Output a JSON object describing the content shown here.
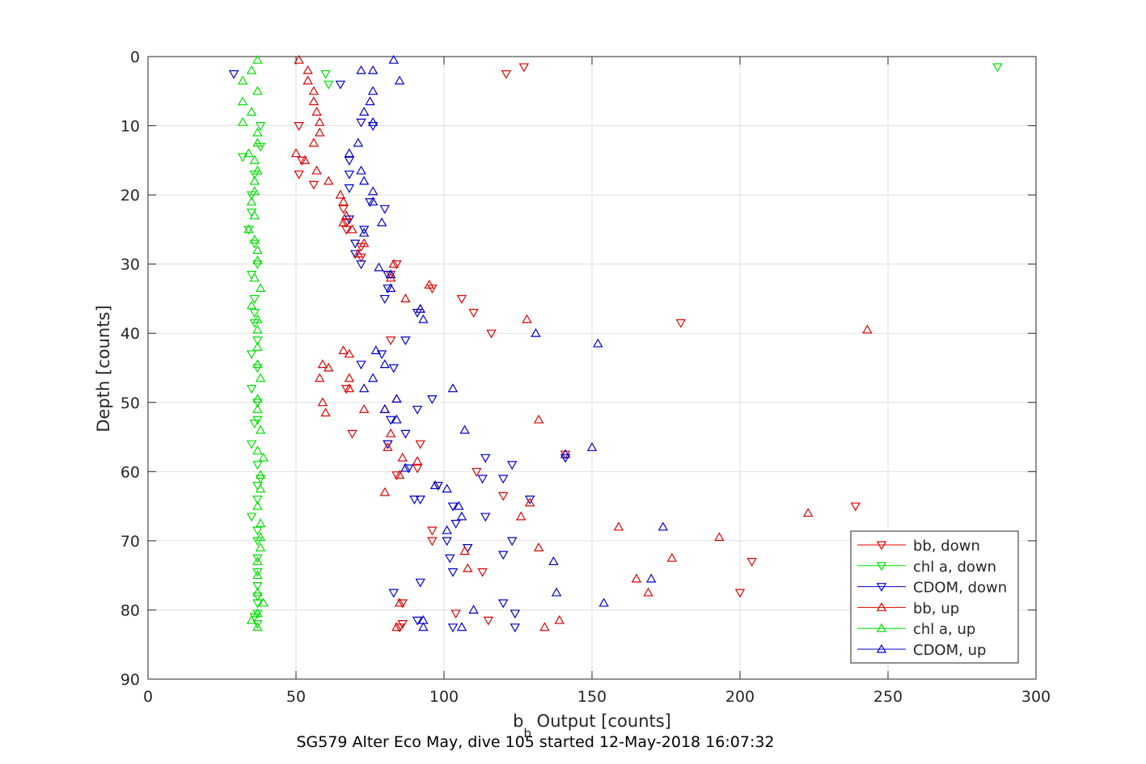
{
  "chart_data": {
    "type": "scatter",
    "xlabel_main": "b",
    "xlabel_sub": "b",
    "xlabel_rest": " Output [counts]",
    "ylabel": "Depth [counts]",
    "caption": "SG579 Alter Eco May, dive 105 started 12-May-2018 16:07:32",
    "xlim": [
      0,
      300
    ],
    "ylim": [
      0,
      90
    ],
    "y_reversed": true,
    "xticks": [
      0,
      50,
      100,
      150,
      200,
      250,
      300
    ],
    "yticks": [
      0,
      10,
      20,
      30,
      40,
      50,
      60,
      70,
      80,
      90
    ],
    "xtick_labels": [
      "0",
      "50",
      "100",
      "150",
      "200",
      "250",
      "300"
    ],
    "ytick_labels": [
      "0",
      "10",
      "20",
      "30",
      "40",
      "50",
      "60",
      "70",
      "80",
      "90"
    ],
    "grid": true,
    "legend_position": "bottom-right",
    "series": [
      {
        "name": "bb, down",
        "color": "#e00000",
        "marker": "triangle-down",
        "points": [
          [
            127,
            1.5
          ],
          [
            121,
            2.5
          ],
          [
            51,
            10
          ],
          [
            51,
            17
          ],
          [
            52,
            15
          ],
          [
            56,
            18.5
          ],
          [
            66,
            22
          ],
          [
            67,
            25
          ],
          [
            67,
            24
          ],
          [
            72,
            27.5
          ],
          [
            72,
            29
          ],
          [
            82,
            31.5
          ],
          [
            84,
            30
          ],
          [
            96,
            33.5
          ],
          [
            106,
            35
          ],
          [
            110,
            37
          ],
          [
            180,
            38.5
          ],
          [
            116,
            40
          ],
          [
            82,
            41
          ],
          [
            67,
            48
          ],
          [
            69,
            54.5
          ],
          [
            81,
            56
          ],
          [
            92,
            56
          ],
          [
            111,
            60
          ],
          [
            84,
            60.5
          ],
          [
            91,
            59.5
          ],
          [
            98,
            62
          ],
          [
            120,
            63.5
          ],
          [
            141,
            57.5
          ],
          [
            239,
            65
          ],
          [
            96,
            68.5
          ],
          [
            96,
            70
          ],
          [
            108,
            71
          ],
          [
            113,
            74.5
          ],
          [
            204,
            73
          ],
          [
            200,
            77.5
          ],
          [
            86,
            79
          ],
          [
            104,
            80.5
          ],
          [
            115,
            81.5
          ],
          [
            86,
            82
          ],
          [
            85,
            82.5
          ]
        ]
      },
      {
        "name": "chl a, down",
        "color": "#00e000",
        "marker": "triangle-down",
        "points": [
          [
            287,
            1.5
          ],
          [
            60,
            2.5
          ],
          [
            61,
            4
          ],
          [
            38,
            10
          ],
          [
            38,
            13
          ],
          [
            32,
            14.5
          ],
          [
            36,
            17
          ],
          [
            35,
            20
          ],
          [
            35,
            22.5
          ],
          [
            34,
            25
          ],
          [
            36,
            27
          ],
          [
            37,
            30
          ],
          [
            35,
            31.5
          ],
          [
            36,
            35
          ],
          [
            36,
            37
          ],
          [
            36,
            38.5
          ],
          [
            37,
            41
          ],
          [
            35,
            43
          ],
          [
            37,
            45
          ],
          [
            35,
            48
          ],
          [
            37,
            50
          ],
          [
            37,
            52.5
          ],
          [
            36,
            53
          ],
          [
            35,
            56
          ],
          [
            37,
            59
          ],
          [
            38,
            61
          ],
          [
            37,
            62
          ],
          [
            37,
            64
          ],
          [
            35,
            66.5
          ],
          [
            37,
            68.5
          ],
          [
            37,
            70
          ],
          [
            37,
            72.5
          ],
          [
            37,
            74.5
          ],
          [
            37,
            76.5
          ],
          [
            37,
            78
          ],
          [
            37,
            79
          ],
          [
            37,
            80.5
          ],
          [
            36,
            81
          ],
          [
            37,
            82
          ]
        ]
      },
      {
        "name": "CDOM, down",
        "color": "#0000d0",
        "marker": "triangle-down",
        "points": [
          [
            29,
            2.5
          ],
          [
            65,
            4
          ],
          [
            72,
            9.5
          ],
          [
            76,
            10
          ],
          [
            68,
            15
          ],
          [
            68,
            17
          ],
          [
            68,
            19
          ],
          [
            75,
            21
          ],
          [
            80,
            22
          ],
          [
            68,
            23.5
          ],
          [
            73,
            25
          ],
          [
            70,
            27
          ],
          [
            70,
            28.5
          ],
          [
            72,
            30
          ],
          [
            81,
            31.5
          ],
          [
            80,
            35
          ],
          [
            81,
            33.5
          ],
          [
            91,
            37
          ],
          [
            87,
            41
          ],
          [
            79,
            43
          ],
          [
            72,
            44.5
          ],
          [
            83,
            45
          ],
          [
            96,
            49.5
          ],
          [
            91,
            51
          ],
          [
            82,
            52.5
          ],
          [
            87,
            54.5
          ],
          [
            81,
            56
          ],
          [
            88,
            59.5
          ],
          [
            98,
            62
          ],
          [
            90,
            64
          ],
          [
            92,
            64
          ],
          [
            114,
            58
          ],
          [
            113,
            61
          ],
          [
            120,
            61
          ],
          [
            123,
            59
          ],
          [
            141,
            58
          ],
          [
            103,
            65
          ],
          [
            114,
            66.5
          ],
          [
            104,
            67.5
          ],
          [
            101,
            70
          ],
          [
            102,
            72.5
          ],
          [
            103,
            74.5
          ],
          [
            120,
            72
          ],
          [
            123,
            70
          ],
          [
            129,
            64
          ],
          [
            108,
            71
          ],
          [
            92,
            76
          ],
          [
            83,
            77.5
          ],
          [
            120,
            79
          ],
          [
            124,
            80.5
          ],
          [
            91,
            81.5
          ],
          [
            103,
            82.5
          ],
          [
            124,
            82.5
          ]
        ]
      },
      {
        "name": "bb, up",
        "color": "#e00000",
        "marker": "triangle-up",
        "points": [
          [
            51,
            0.5
          ],
          [
            54,
            2
          ],
          [
            54,
            3.5
          ],
          [
            56,
            5
          ],
          [
            56,
            6.5
          ],
          [
            57,
            8
          ],
          [
            58,
            9.5
          ],
          [
            58,
            11
          ],
          [
            56,
            12.5
          ],
          [
            50,
            14
          ],
          [
            53,
            15
          ],
          [
            57,
            16.5
          ],
          [
            61,
            18
          ],
          [
            65,
            20
          ],
          [
            66,
            21
          ],
          [
            67,
            23
          ],
          [
            66,
            24
          ],
          [
            69,
            25
          ],
          [
            73,
            27
          ],
          [
            71,
            28.5
          ],
          [
            83,
            30
          ],
          [
            82,
            32
          ],
          [
            95,
            33
          ],
          [
            87,
            35
          ],
          [
            92,
            36.5
          ],
          [
            128,
            38
          ],
          [
            243,
            39.5
          ],
          [
            66,
            42.5
          ],
          [
            68,
            43
          ],
          [
            59,
            44.5
          ],
          [
            61,
            45
          ],
          [
            58,
            46.5
          ],
          [
            68,
            46.5
          ],
          [
            68,
            48
          ],
          [
            84,
            49.5
          ],
          [
            80,
            51
          ],
          [
            73,
            51
          ],
          [
            59,
            50
          ],
          [
            60,
            51.5
          ],
          [
            132,
            52.5
          ],
          [
            82,
            54.5
          ],
          [
            81,
            56.5
          ],
          [
            86,
            58
          ],
          [
            91,
            58.5
          ],
          [
            85,
            60.5
          ],
          [
            80,
            63
          ],
          [
            129,
            64.5
          ],
          [
            126,
            66.5
          ],
          [
            223,
            66
          ],
          [
            159,
            68
          ],
          [
            193,
            69.5
          ],
          [
            132,
            71
          ],
          [
            177,
            72.5
          ],
          [
            107,
            71.5
          ],
          [
            108,
            74
          ],
          [
            165,
            75.5
          ],
          [
            169,
            77.5
          ],
          [
            85,
            79
          ],
          [
            139,
            81.5
          ],
          [
            134,
            82.5
          ],
          [
            84,
            82.5
          ]
        ]
      },
      {
        "name": "chl a, up",
        "color": "#00e000",
        "marker": "triangle-up",
        "points": [
          [
            37,
            0.5
          ],
          [
            35,
            2
          ],
          [
            32,
            3.5
          ],
          [
            37,
            5
          ],
          [
            32,
            6.5
          ],
          [
            35,
            8
          ],
          [
            32,
            9.5
          ],
          [
            37,
            11
          ],
          [
            37,
            12.5
          ],
          [
            34,
            14
          ],
          [
            36,
            15
          ],
          [
            37,
            16.5
          ],
          [
            36,
            18
          ],
          [
            36,
            19.5
          ],
          [
            35,
            21
          ],
          [
            36,
            23
          ],
          [
            34,
            25
          ],
          [
            36,
            26.5
          ],
          [
            37,
            28
          ],
          [
            37,
            29.5
          ],
          [
            38,
            33.5
          ],
          [
            36,
            32
          ],
          [
            35,
            36
          ],
          [
            37,
            38
          ],
          [
            37,
            39.5
          ],
          [
            37,
            42
          ],
          [
            37,
            44.5
          ],
          [
            38,
            46.5
          ],
          [
            37,
            49.5
          ],
          [
            37,
            51
          ],
          [
            38,
            54
          ],
          [
            37,
            57
          ],
          [
            39,
            58
          ],
          [
            38,
            60.5
          ],
          [
            38,
            62.5
          ],
          [
            37,
            65
          ],
          [
            38,
            67.5
          ],
          [
            38,
            69.5
          ],
          [
            38,
            71
          ],
          [
            37,
            73
          ],
          [
            37,
            75
          ],
          [
            37,
            77.5
          ],
          [
            39,
            79
          ],
          [
            37,
            80.5
          ],
          [
            35,
            81.5
          ],
          [
            37,
            82.5
          ]
        ]
      },
      {
        "name": "CDOM, up",
        "color": "#0000d0",
        "marker": "triangle-up",
        "points": [
          [
            83,
            0.5
          ],
          [
            72,
            2
          ],
          [
            76,
            2
          ],
          [
            85,
            3.5
          ],
          [
            76,
            5
          ],
          [
            75,
            6.5
          ],
          [
            73,
            8
          ],
          [
            76,
            9.5
          ],
          [
            71,
            12.5
          ],
          [
            68,
            14
          ],
          [
            72,
            16.5
          ],
          [
            73,
            18
          ],
          [
            76,
            19.5
          ],
          [
            76,
            21
          ],
          [
            79,
            24
          ],
          [
            73,
            25.5
          ],
          [
            78,
            30.5
          ],
          [
            82,
            31.5
          ],
          [
            82,
            33.5
          ],
          [
            92,
            36.5
          ],
          [
            93,
            38
          ],
          [
            131,
            40
          ],
          [
            152,
            41.5
          ],
          [
            77,
            42.5
          ],
          [
            80,
            44.5
          ],
          [
            76,
            46.5
          ],
          [
            73,
            48
          ],
          [
            84,
            49.5
          ],
          [
            103,
            48
          ],
          [
            80,
            51
          ],
          [
            84,
            52.5
          ],
          [
            107,
            54
          ],
          [
            150,
            56.5
          ],
          [
            141,
            57.5
          ],
          [
            101,
            62.5
          ],
          [
            105,
            65
          ],
          [
            106,
            66.5
          ],
          [
            97,
            62
          ],
          [
            87,
            59.5
          ],
          [
            93,
            81.5
          ],
          [
            106,
            82.5
          ],
          [
            110,
            80
          ],
          [
            154,
            79
          ],
          [
            138,
            77.5
          ],
          [
            137,
            73
          ],
          [
            170,
            75.5
          ],
          [
            174,
            68
          ],
          [
            101,
            68.5
          ],
          [
            93,
            82.5
          ]
        ]
      }
    ]
  }
}
